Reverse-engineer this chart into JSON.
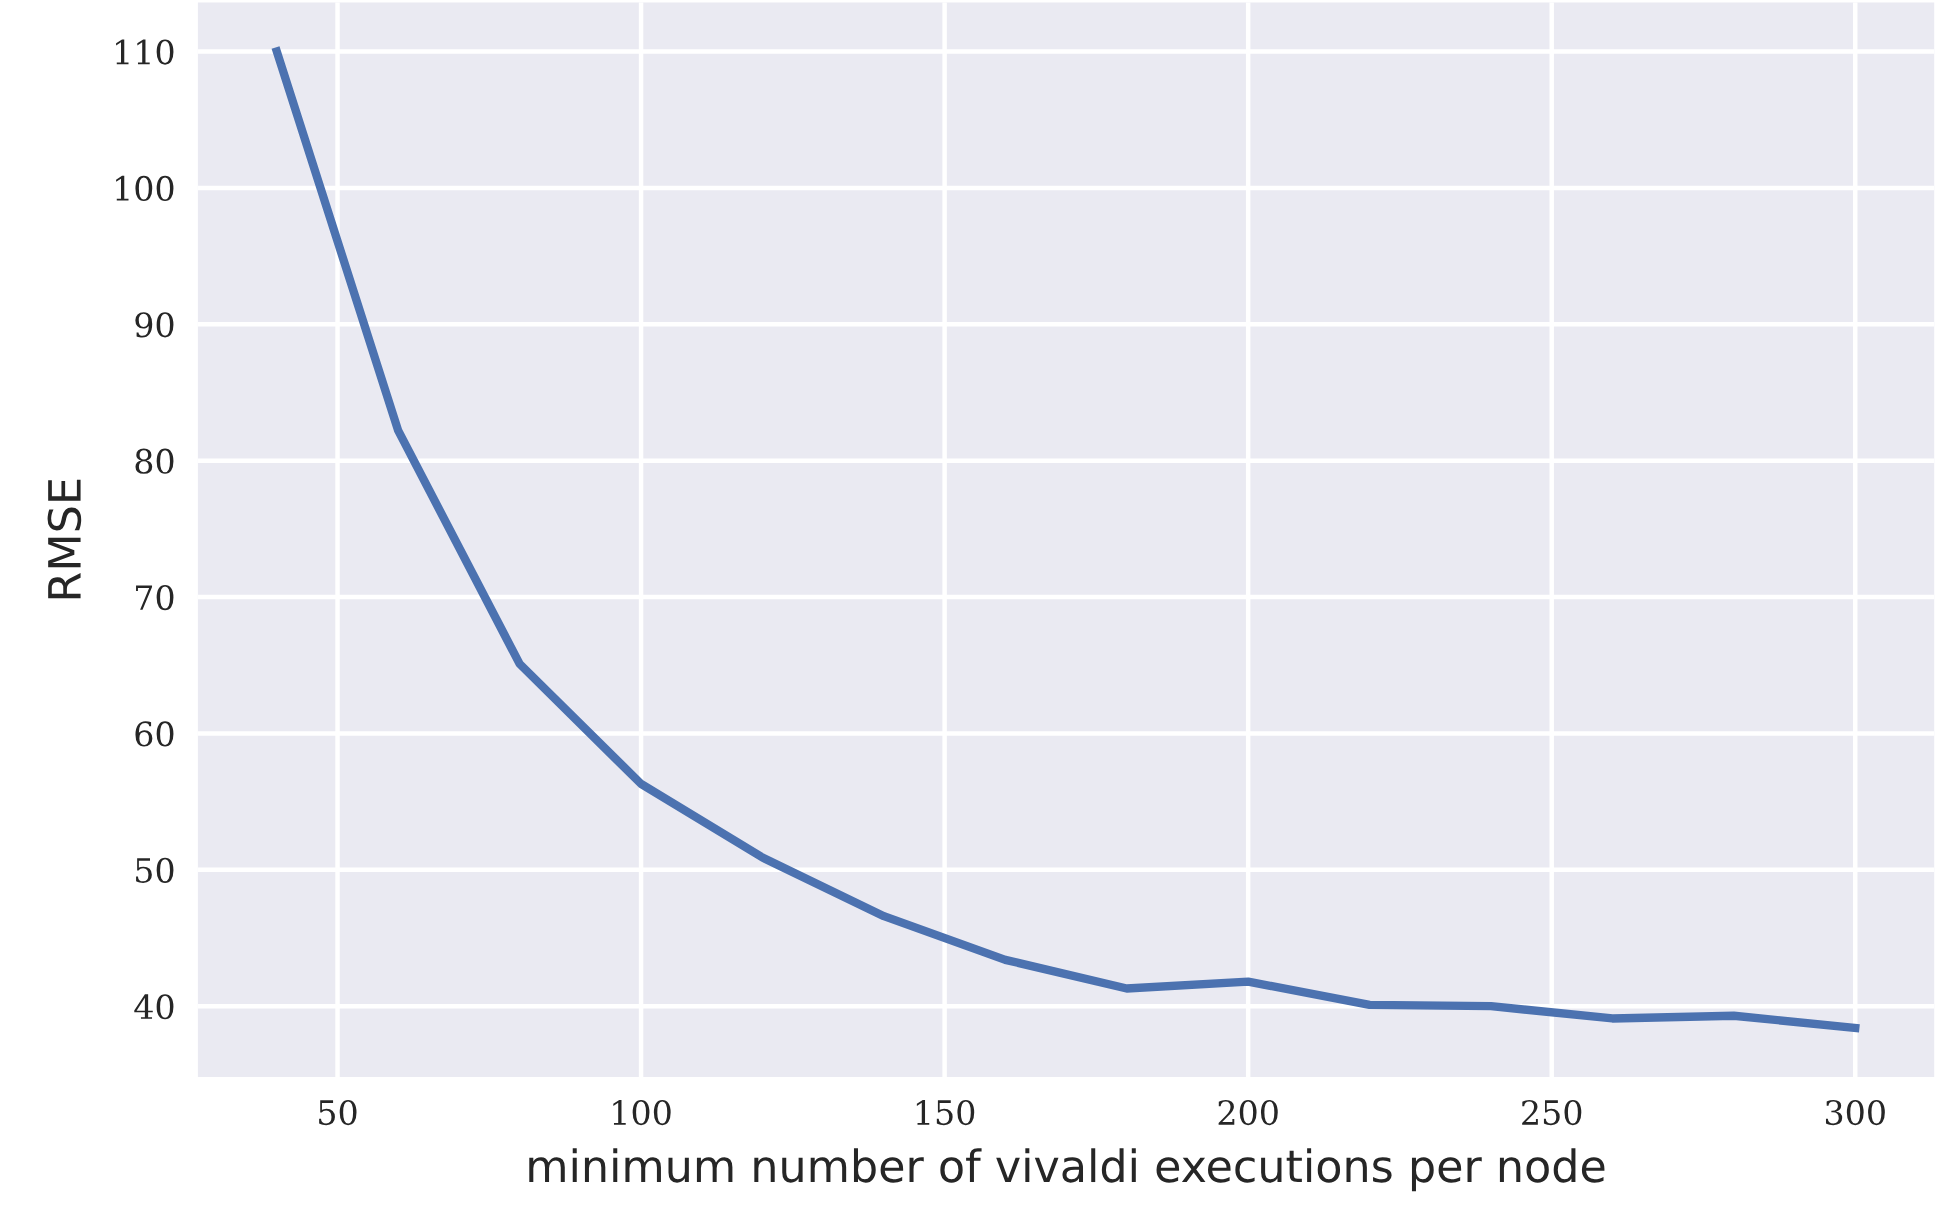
{
  "chart_data": {
    "type": "line",
    "xlabel": "minimum number of vivaldi executions per node",
    "ylabel": "RMSE",
    "x": [
      40,
      60,
      80,
      100,
      120,
      140,
      160,
      180,
      200,
      220,
      240,
      260,
      280,
      300
    ],
    "series": [
      {
        "color": "#4c72b0",
        "values": [
          110,
          82.2,
          65.1,
          56.3,
          50.9,
          46.6,
          43.4,
          41.3,
          41.8,
          40.1,
          40.0,
          39.1,
          39.3,
          38.4
        ]
      }
    ],
    "xlim": [
      27,
      313
    ],
    "ylim": [
      34.8,
      113.6
    ],
    "xticks": [
      50,
      100,
      150,
      200,
      250,
      300
    ],
    "yticks": [
      40,
      50,
      60,
      70,
      80,
      90,
      100,
      110
    ],
    "grid": true,
    "line_style": "solid",
    "marker": "none"
  }
}
